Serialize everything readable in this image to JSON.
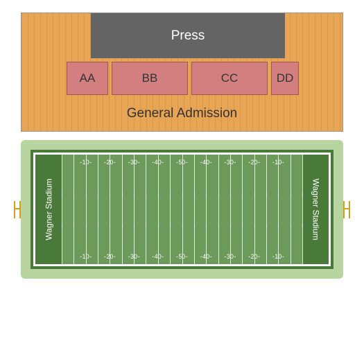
{
  "seating": {
    "press_label": "Press",
    "general_admission_label": "General Admission",
    "sections": {
      "aa": "AA",
      "bb": "BB",
      "cc": "CC",
      "dd": "DD"
    },
    "colors": {
      "ga_bg": "#e8a554",
      "section_bg": "#d47f7f",
      "press_bg": "#646464",
      "press_text": "#ffffff"
    }
  },
  "field": {
    "endzone_left": "Wagner Stadium",
    "endzone_right": "Wagner Stadium",
    "yard_numbers": [
      "10",
      "20",
      "30",
      "40",
      "50",
      "40",
      "30",
      "20",
      "10"
    ],
    "colors": {
      "grass": "#6b9a5b",
      "endzone": "#4a7a3a",
      "outer": "#b8d4a0",
      "lines": "#ffffff",
      "goalpost": "#d4a017"
    }
  }
}
